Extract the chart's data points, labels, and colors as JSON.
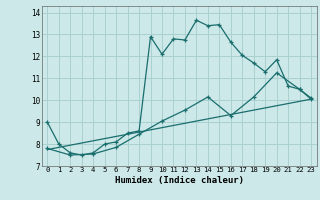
{
  "xlabel": "Humidex (Indice chaleur)",
  "bg_color": "#cce8e8",
  "grid_color": "#aad0d0",
  "line_color": "#1a6e6e",
  "xlim": [
    -0.5,
    23.5
  ],
  "ylim": [
    7.0,
    14.3
  ],
  "xticks": [
    0,
    1,
    2,
    3,
    4,
    5,
    6,
    7,
    8,
    9,
    10,
    11,
    12,
    13,
    14,
    15,
    16,
    17,
    18,
    19,
    20,
    21,
    22,
    23
  ],
  "yticks": [
    7,
    8,
    9,
    10,
    11,
    12,
    13,
    14
  ],
  "line1_x": [
    0,
    1,
    2,
    3,
    4,
    5,
    6,
    7,
    8,
    9,
    10,
    11,
    12,
    13,
    14,
    15,
    16,
    17,
    18,
    19,
    20,
    21,
    22,
    23
  ],
  "line1_y": [
    9.0,
    8.0,
    7.6,
    7.5,
    7.6,
    8.0,
    8.1,
    8.5,
    8.6,
    12.9,
    12.1,
    12.8,
    12.75,
    13.65,
    13.4,
    13.45,
    12.65,
    12.05,
    11.7,
    11.3,
    11.85,
    10.65,
    10.5,
    10.1
  ],
  "line2_x": [
    0,
    2,
    4,
    6,
    8,
    10,
    12,
    14,
    16,
    18,
    20,
    22,
    23
  ],
  "line2_y": [
    7.8,
    7.5,
    7.55,
    7.85,
    8.45,
    9.05,
    9.55,
    10.15,
    9.3,
    10.15,
    11.25,
    10.5,
    10.05
  ],
  "line3_x": [
    0,
    23
  ],
  "line3_y": [
    7.75,
    10.05
  ]
}
